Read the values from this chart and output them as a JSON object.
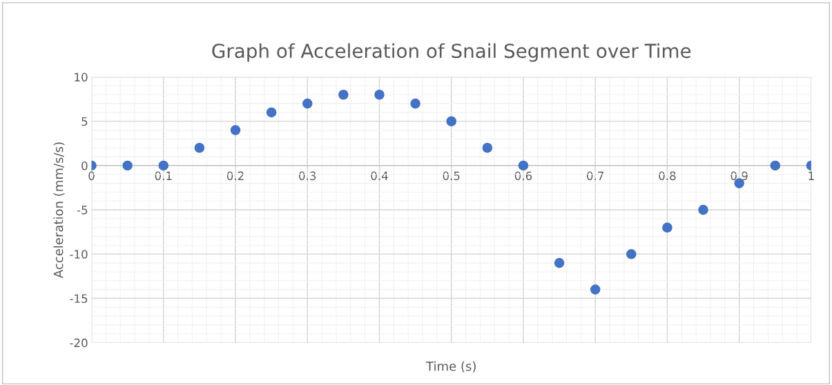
{
  "chart_data": {
    "type": "scatter",
    "title": "Graph of Acceleration of Snail Segment over Time",
    "xlabel": "Time (s)",
    "ylabel": "Acceleration (mm/s/s)",
    "x": [
      0,
      0.05,
      0.1,
      0.15,
      0.2,
      0.25,
      0.3,
      0.35,
      0.4,
      0.45,
      0.5,
      0.55,
      0.6,
      0.65,
      0.7,
      0.75,
      0.8,
      0.85,
      0.9,
      0.95,
      1
    ],
    "series": [
      {
        "color": "#4472c4",
        "values": [
          0,
          0,
          0,
          2,
          4,
          6,
          7,
          8,
          8,
          7,
          5,
          2,
          0,
          -11,
          -14,
          -10,
          -7,
          -5,
          -2,
          0,
          0
        ]
      }
    ],
    "xlim": [
      0,
      1
    ],
    "xticks": [
      0,
      0.1,
      0.2,
      0.3,
      0.4,
      0.5,
      0.6,
      0.7,
      0.8,
      0.9,
      1
    ],
    "ylim": [
      -20,
      10
    ],
    "yticks": [
      -20,
      -15,
      -10,
      -5,
      0,
      5,
      10
    ],
    "grid": true,
    "marker": "circle"
  }
}
